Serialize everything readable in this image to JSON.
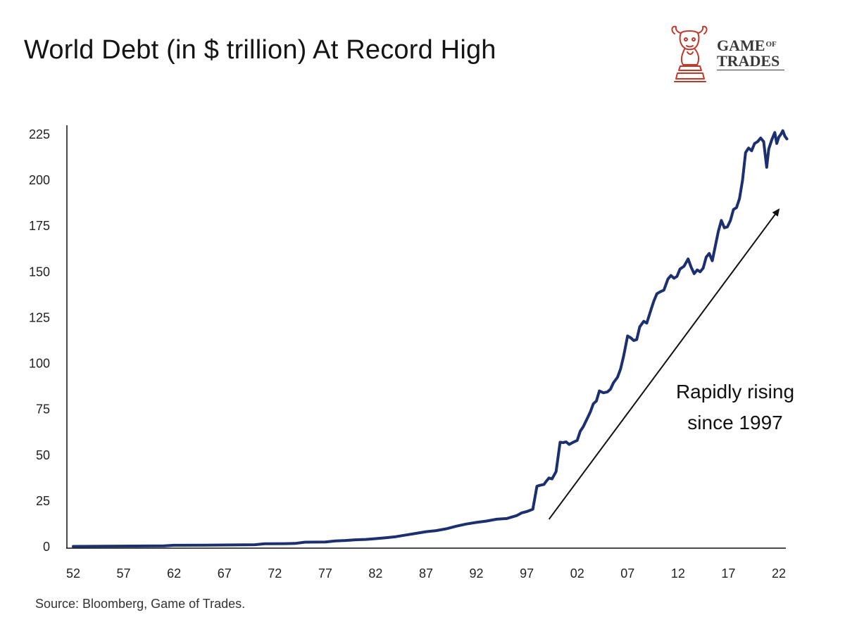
{
  "header": {
    "title": "World Debt (in $ trillion) At Record High"
  },
  "logo": {
    "line1": "GAME",
    "of": "OF",
    "line2": "TRADES",
    "icon": "bull-chess-knight-icon",
    "color": "#c0392b"
  },
  "footer": {
    "source": "Source: Bloomberg, Game of Trades."
  },
  "chart_data": {
    "type": "line",
    "title": "World Debt (in $ trillion) At Record High",
    "xlabel": "",
    "ylabel": "",
    "ylim": [
      0,
      230
    ],
    "yticks": [
      0,
      25,
      50,
      75,
      100,
      125,
      150,
      175,
      200,
      225
    ],
    "xtick_labels": [
      "52",
      "57",
      "62",
      "67",
      "72",
      "77",
      "82",
      "87",
      "92",
      "97",
      "02",
      "07",
      "12",
      "17",
      "22"
    ],
    "xtick_years": [
      1952,
      1957,
      1962,
      1967,
      1972,
      1977,
      1982,
      1987,
      1992,
      1997,
      2002,
      2007,
      2012,
      2017,
      2022
    ],
    "line_color": "#1c2f6e",
    "grid": false,
    "annotation": {
      "lines": [
        "Rapidly rising",
        "since 1997"
      ],
      "arrow_from": [
        1999.2,
        15
      ],
      "arrow_to": [
        2022.0,
        184
      ]
    },
    "series": [
      {
        "x": [
          1952.0,
          1955.0,
          1958.0,
          1961.0,
          1962.0,
          1965.0,
          1968.0,
          1970.0,
          1971.0,
          1973.0,
          1974.0,
          1975.0,
          1977.0,
          1978.0,
          1979.0,
          1980.0,
          1981.0,
          1982.0,
          1983.0,
          1984.0,
          1985.0,
          1986.0,
          1987.0,
          1988.0,
          1989.0,
          1990.0,
          1991.0,
          1992.0,
          1993.0,
          1994.0,
          1995.0,
          1996.0,
          1996.5,
          1997.0,
          1997.3,
          1997.6,
          1998.0,
          1998.3,
          1998.7,
          1998.9,
          1999.2,
          1999.5,
          1999.9,
          2000.3,
          2000.6,
          2000.9,
          2001.2,
          2001.6,
          2002.0,
          2002.3,
          2002.6,
          2003.0,
          2003.3,
          2003.6,
          2003.9,
          2004.2,
          2004.6,
          2005.0,
          2005.3,
          2005.6,
          2006.0,
          2006.3,
          2006.6,
          2007.0,
          2007.3,
          2007.6,
          2007.9,
          2008.2,
          2008.6,
          2008.9,
          2009.3,
          2009.6,
          2009.9,
          2010.2,
          2010.6,
          2011.0,
          2011.3,
          2011.6,
          2011.9,
          2012.2,
          2012.6,
          2013.0,
          2013.3,
          2013.6,
          2013.9,
          2014.2,
          2014.5,
          2014.8,
          2015.1,
          2015.4,
          2015.7,
          2016.0,
          2016.3,
          2016.6,
          2016.9,
          2017.2,
          2017.5,
          2017.8,
          2018.1,
          2018.4,
          2018.7,
          2019.0,
          2019.3,
          2019.6,
          2019.9,
          2020.2,
          2020.5,
          2020.8,
          2021.0,
          2021.3,
          2021.6,
          2021.8,
          2022.0,
          2022.2,
          2022.4,
          2022.6,
          2022.8
        ],
        "y": [
          0.2,
          0.3,
          0.4,
          0.5,
          0.8,
          0.9,
          1.0,
          1.1,
          1.6,
          1.7,
          1.8,
          2.5,
          2.6,
          3.2,
          3.4,
          3.8,
          4.0,
          4.4,
          4.9,
          5.5,
          6.4,
          7.3,
          8.2,
          8.8,
          9.8,
          11.2,
          12.4,
          13.3,
          14.0,
          15.0,
          15.4,
          17.0,
          18.5,
          19.2,
          19.8,
          20.5,
          33.0,
          33.5,
          34.0,
          35.5,
          37.5,
          37.0,
          41.0,
          57.0,
          56.8,
          57.2,
          55.8,
          57.0,
          58.0,
          63.0,
          65.5,
          70.0,
          73.5,
          78.0,
          79.5,
          85.0,
          84.0,
          84.5,
          86.0,
          89.5,
          92.5,
          97.0,
          104.0,
          115.0,
          114.0,
          112.5,
          113.0,
          120.0,
          123.0,
          122.0,
          129.0,
          134.0,
          138.0,
          139.0,
          140.0,
          146.0,
          148.0,
          146.5,
          147.5,
          151.5,
          153.0,
          157.0,
          152.5,
          149.0,
          151.0,
          150.0,
          152.0,
          158.0,
          160.0,
          156.0,
          164.0,
          172.0,
          178.0,
          174.0,
          174.5,
          178.0,
          184.0,
          185.0,
          190.0,
          200.0,
          215.0,
          217.5,
          216.0,
          220.0,
          221.0,
          223.0,
          221.0,
          207.0,
          217.0,
          222.0,
          226.0,
          220.0,
          223.5,
          225.0,
          227.0,
          224.0,
          222.5
        ]
      }
    ]
  }
}
